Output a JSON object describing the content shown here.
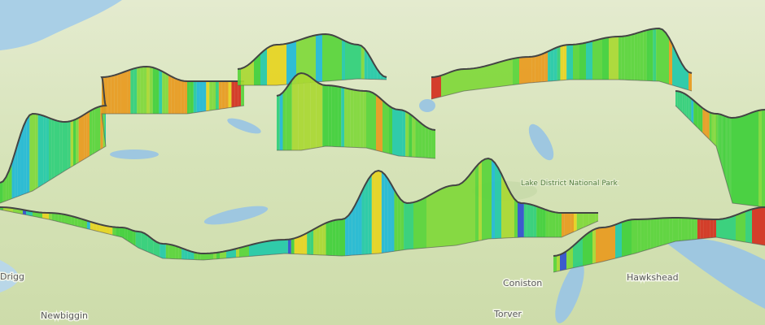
{
  "map": {
    "labels": [
      "Drigg",
      "Newbiggin",
      "Coniston",
      "Hawkshead",
      "Torver"
    ],
    "park_label": "Lake District National Park"
  }
}
